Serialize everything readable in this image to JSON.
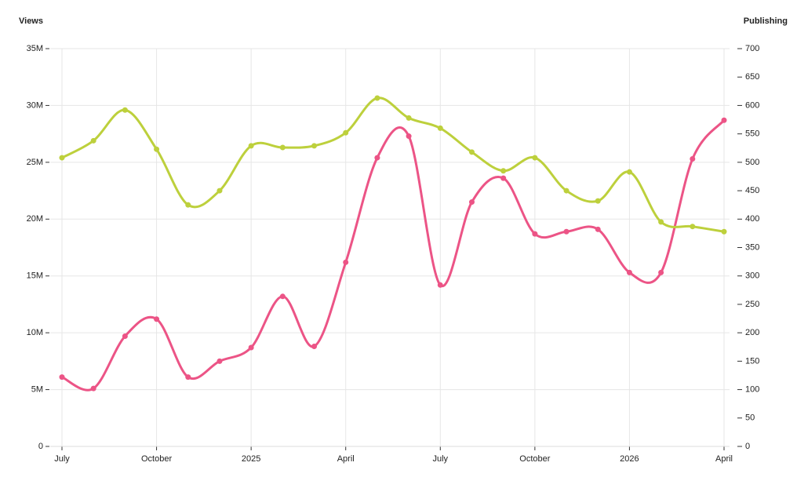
{
  "chart_data": {
    "type": "line",
    "categories": [
      "July",
      null,
      null,
      "October",
      null,
      null,
      "2025",
      null,
      null,
      "April",
      null,
      null,
      "July",
      null,
      null,
      "October",
      null,
      null,
      "2026",
      null,
      null,
      "April"
    ],
    "series": [
      {
        "name": "Views",
        "color": "#ec5486",
        "axis": "y",
        "values": [
          6.1,
          5.1,
          9.7,
          11.2,
          6.1,
          7.5,
          8.7,
          13.2,
          8.8,
          16.2,
          25.4,
          27.3,
          14.2,
          21.5,
          23.6,
          18.7,
          18.9,
          19.1,
          15.3,
          15.3,
          25.3,
          28.7
        ]
      },
      {
        "name": "Publishing",
        "color": "#bdd03c",
        "axis": "y2",
        "values": [
          508,
          538,
          592,
          523,
          425,
          450,
          529,
          526,
          529,
          552,
          613,
          578,
          560,
          518,
          485,
          508,
          450,
          432,
          483,
          395,
          387,
          378
        ]
      }
    ],
    "ylim": [
      0,
      35
    ],
    "yticks": [
      0,
      {
        "value": 5,
        "label": "5M"
      },
      {
        "value": 10,
        "label": "10M"
      },
      {
        "value": 15,
        "label": "15M"
      },
      {
        "value": 20,
        "label": "20M"
      },
      {
        "value": 25,
        "label": "25M"
      },
      {
        "value": 30,
        "label": "30M"
      },
      {
        "value": 35,
        "label": "35M"
      }
    ],
    "y2lim": [
      0,
      700
    ],
    "y2ticks": [
      0,
      50,
      100,
      150,
      200,
      250,
      300,
      350,
      400,
      450,
      500,
      550,
      600,
      650,
      700
    ],
    "grid": true
  }
}
